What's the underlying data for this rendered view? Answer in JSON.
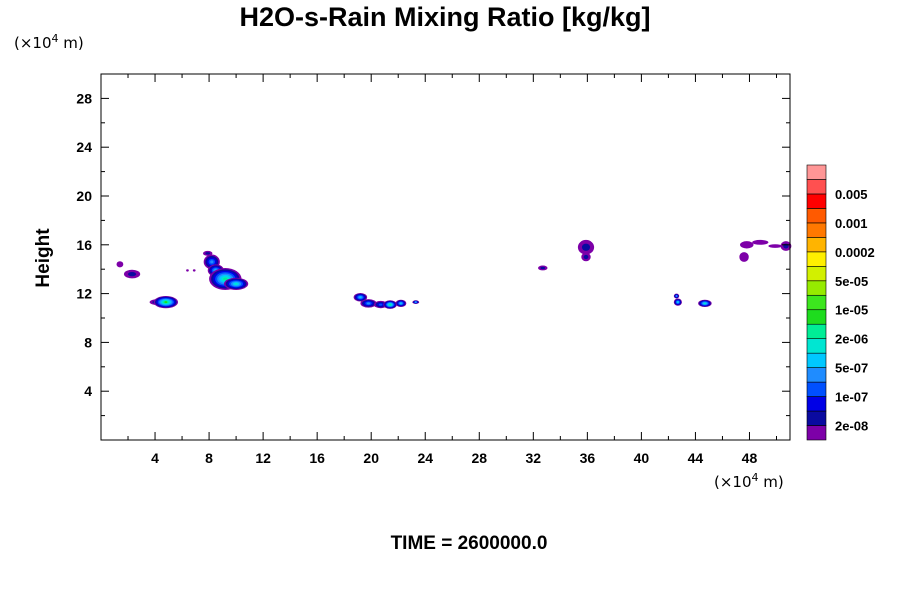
{
  "chart_data": {
    "type": "heatmap",
    "title": "H2O-s-Rain Mixing Ratio [kg/kg]",
    "ylabel": "Height",
    "y_unit": {
      "prefix": "(×10",
      "exp": "4",
      "suffix": " m)"
    },
    "x_unit": {
      "prefix": "(×10",
      "exp": "4",
      "suffix": " m)"
    },
    "xlim": [
      0,
      51
    ],
    "ylim": [
      0,
      30
    ],
    "x_ticks": [
      4,
      8,
      12,
      16,
      20,
      24,
      28,
      32,
      36,
      40,
      44,
      48
    ],
    "y_ticks": [
      4,
      8,
      12,
      16,
      20,
      24,
      28
    ],
    "x_tick_labels": [
      "4",
      "8",
      "12",
      "16",
      "20",
      "24",
      "28",
      "32",
      "36",
      "40",
      "44",
      "48"
    ],
    "y_tick_labels": [
      "4",
      "8",
      "12",
      "16",
      "20",
      "24",
      "28"
    ],
    "colorbar": {
      "colors": [
        "#7d00a8",
        "#0a0aa0",
        "#0000e6",
        "#0050ff",
        "#1f8cff",
        "#00c8ff",
        "#00e6d2",
        "#00ee96",
        "#1edc1e",
        "#3ce61e",
        "#96eb00",
        "#d2f000",
        "#ffef00",
        "#ffb400",
        "#ff7800",
        "#ff5a00",
        "#ff0000",
        "#ff5050",
        "#ff9696"
      ],
      "labels": [
        "2e-08",
        "1e-07",
        "5e-07",
        "2e-06",
        "1e-05",
        "5e-05",
        "0.0002",
        "0.001",
        "0.005"
      ]
    },
    "clouds": [
      {
        "x": 1.4,
        "y": 14.4,
        "rx": 0.25,
        "ry": 0.25,
        "core": 0
      },
      {
        "x": 2.3,
        "y": 13.6,
        "rx": 0.6,
        "ry": 0.35,
        "core": 1
      },
      {
        "x": 4.2,
        "y": 11.3,
        "rx": 0.6,
        "ry": 0.25,
        "core": 2
      },
      {
        "x": 4.8,
        "y": 11.3,
        "rx": 0.9,
        "ry": 0.5,
        "core": 8
      },
      {
        "x": 6.4,
        "y": 13.9,
        "rx": 0.1,
        "ry": 0.1,
        "core": 0
      },
      {
        "x": 6.9,
        "y": 13.9,
        "rx": 0.1,
        "ry": 0.1,
        "core": 0
      },
      {
        "x": 7.9,
        "y": 15.3,
        "rx": 0.35,
        "ry": 0.2,
        "core": 1
      },
      {
        "x": 8.2,
        "y": 14.6,
        "rx": 0.6,
        "ry": 0.6,
        "core": 4
      },
      {
        "x": 8.5,
        "y": 13.9,
        "rx": 0.6,
        "ry": 0.5,
        "core": 5
      },
      {
        "x": 9.2,
        "y": 13.2,
        "rx": 1.2,
        "ry": 0.9,
        "core": 7
      },
      {
        "x": 10.0,
        "y": 12.8,
        "rx": 0.9,
        "ry": 0.5,
        "core": 6
      },
      {
        "x": 19.2,
        "y": 11.7,
        "rx": 0.5,
        "ry": 0.35,
        "core": 5
      },
      {
        "x": 19.8,
        "y": 11.2,
        "rx": 0.6,
        "ry": 0.35,
        "core": 4
      },
      {
        "x": 20.7,
        "y": 11.1,
        "rx": 0.5,
        "ry": 0.3,
        "core": 3
      },
      {
        "x": 21.4,
        "y": 11.1,
        "rx": 0.5,
        "ry": 0.35,
        "core": 7
      },
      {
        "x": 22.2,
        "y": 11.2,
        "rx": 0.4,
        "ry": 0.3,
        "core": 5
      },
      {
        "x": 23.3,
        "y": 11.3,
        "rx": 0.25,
        "ry": 0.15,
        "core": 4
      },
      {
        "x": 32.7,
        "y": 14.1,
        "rx": 0.35,
        "ry": 0.2,
        "core": 1
      },
      {
        "x": 35.9,
        "y": 15.8,
        "rx": 0.6,
        "ry": 0.6,
        "core": 1
      },
      {
        "x": 35.9,
        "y": 15.0,
        "rx": 0.35,
        "ry": 0.35,
        "core": 1
      },
      {
        "x": 42.7,
        "y": 11.3,
        "rx": 0.3,
        "ry": 0.3,
        "core": 5
      },
      {
        "x": 42.6,
        "y": 11.8,
        "rx": 0.2,
        "ry": 0.2,
        "core": 4
      },
      {
        "x": 44.7,
        "y": 11.2,
        "rx": 0.5,
        "ry": 0.3,
        "core": 6
      },
      {
        "x": 47.8,
        "y": 16.0,
        "rx": 0.5,
        "ry": 0.3,
        "core": 0
      },
      {
        "x": 47.6,
        "y": 15.0,
        "rx": 0.35,
        "ry": 0.4,
        "core": 0
      },
      {
        "x": 48.8,
        "y": 16.2,
        "rx": 0.6,
        "ry": 0.2,
        "core": 0
      },
      {
        "x": 49.9,
        "y": 15.9,
        "rx": 0.5,
        "ry": 0.15,
        "core": 0
      },
      {
        "x": 50.7,
        "y": 15.9,
        "rx": 0.4,
        "ry": 0.4,
        "core": 1
      }
    ]
  },
  "footer": {
    "time_label": "TIME = 2600000.0"
  }
}
